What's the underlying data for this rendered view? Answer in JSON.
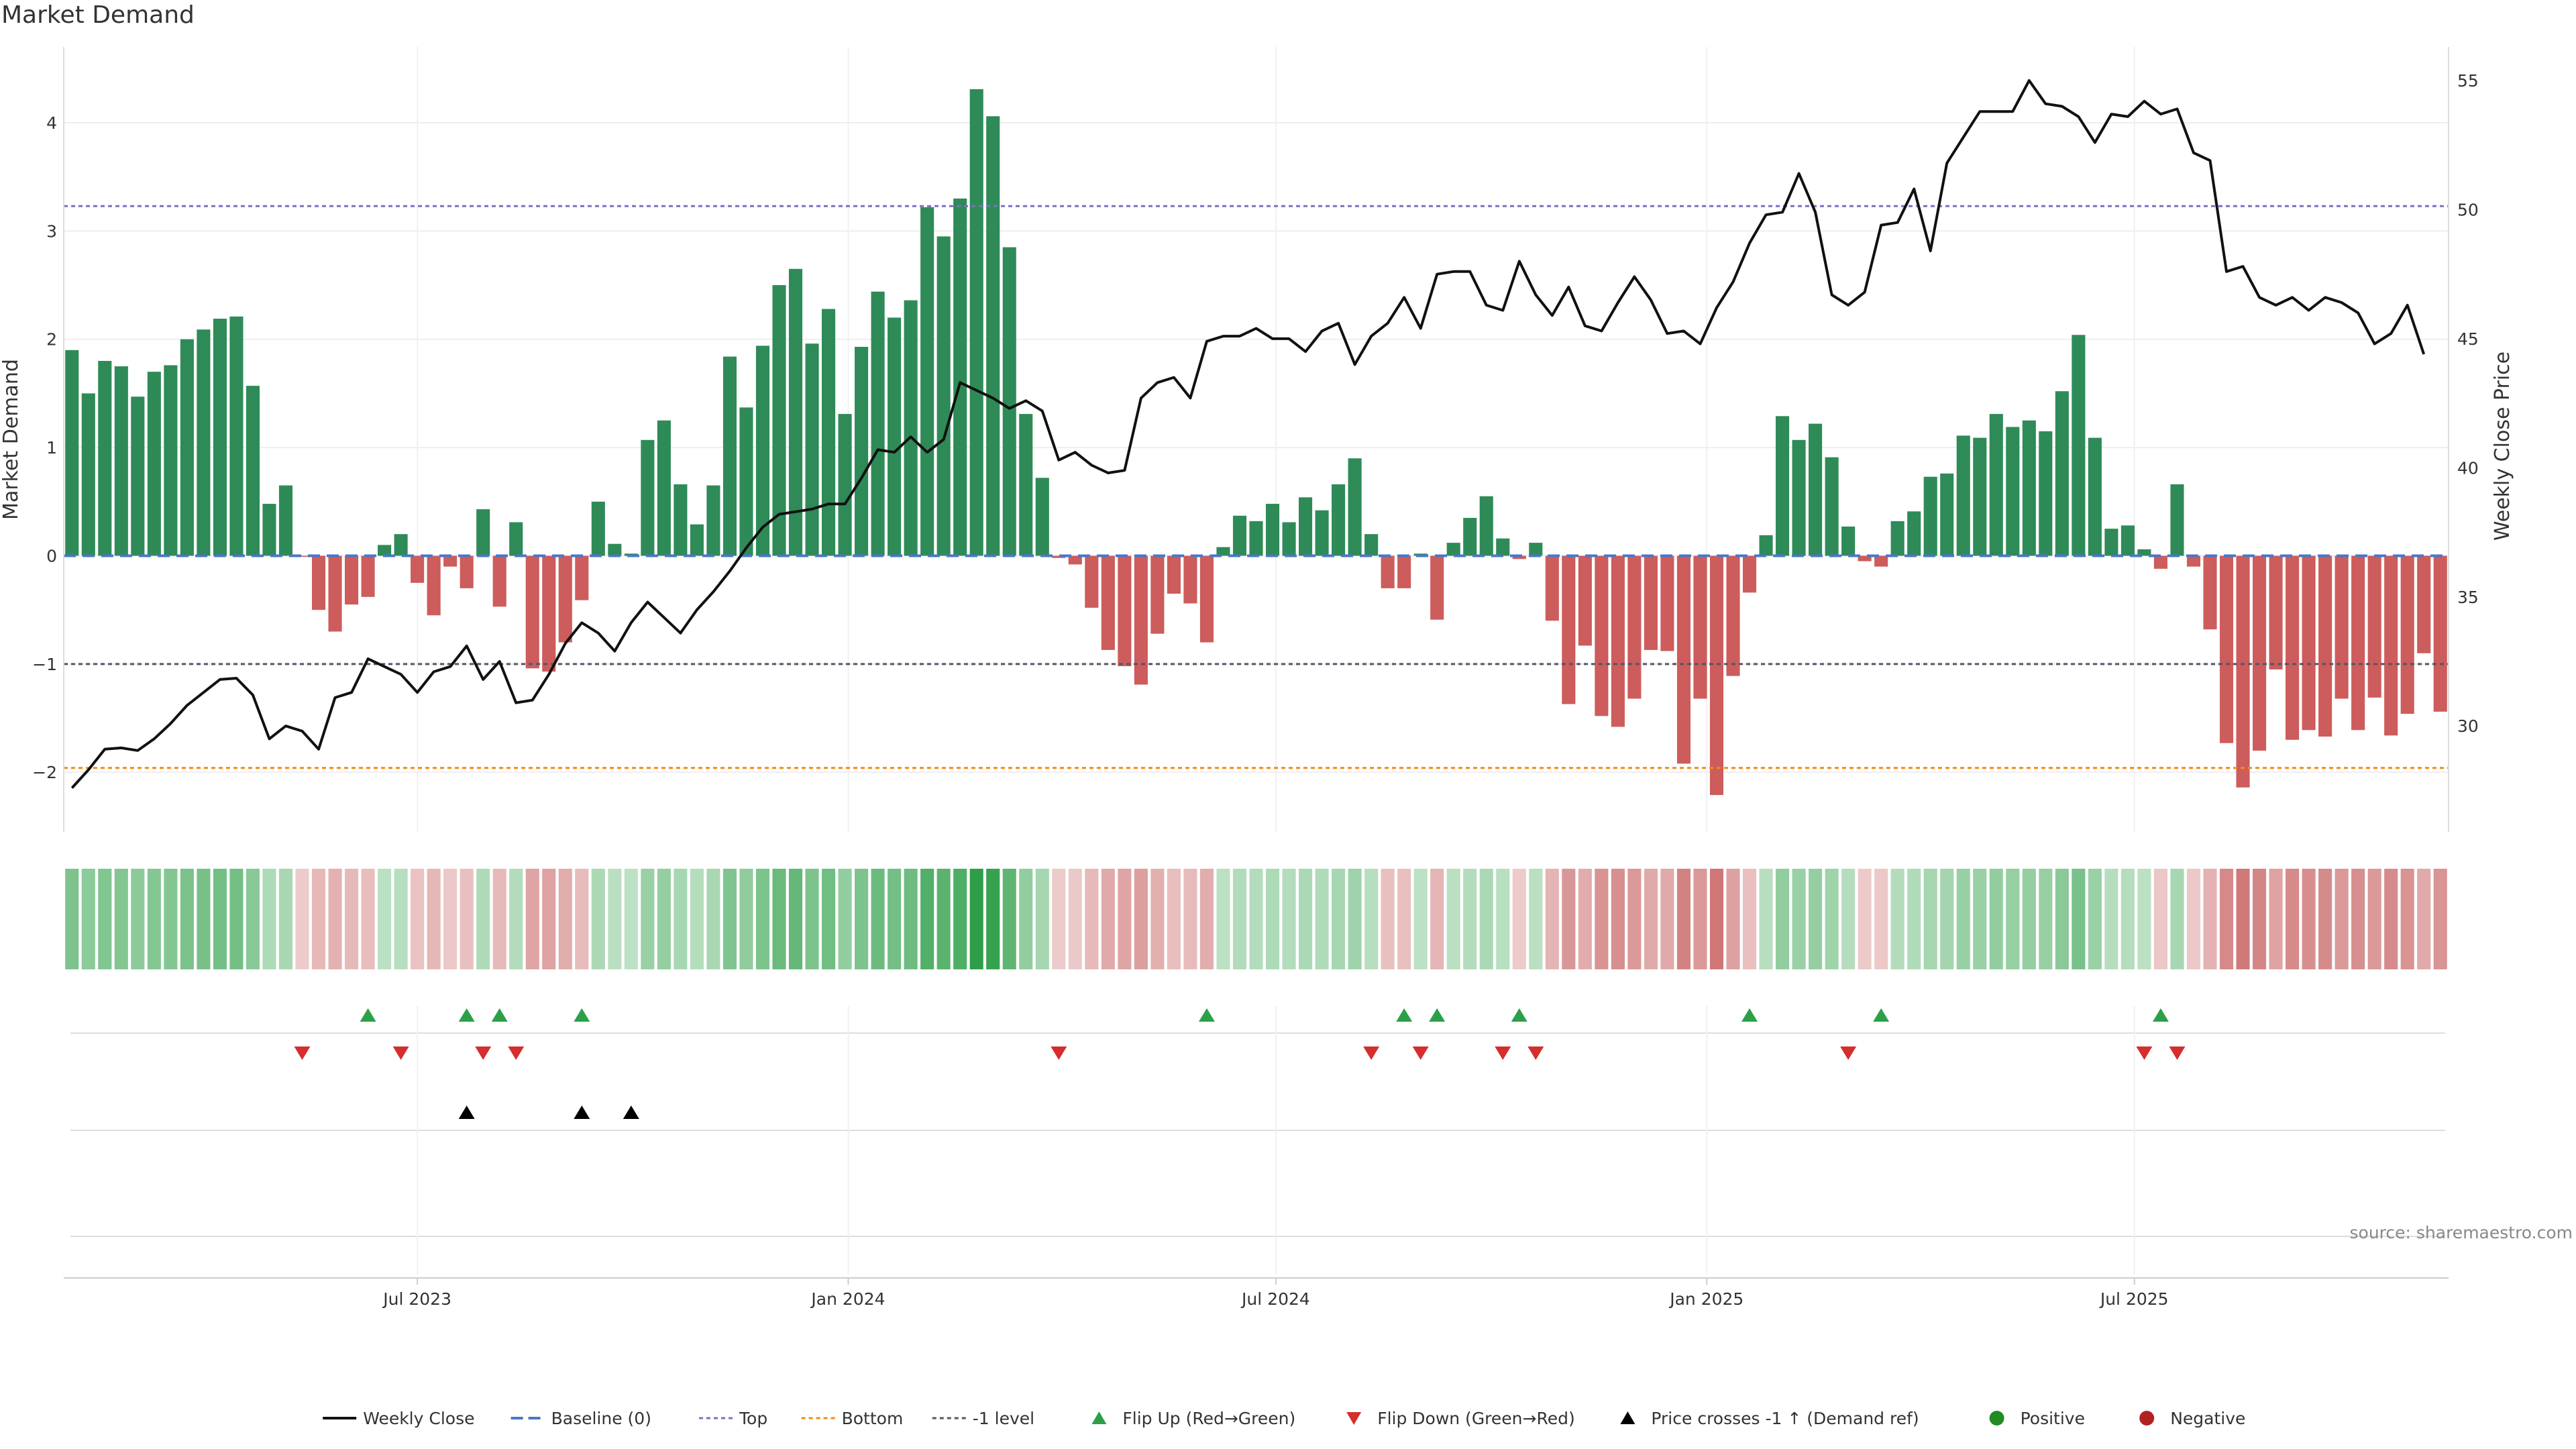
{
  "chart_data": {
    "type": "bar",
    "title": "Market Demand",
    "ylabel_left": "Market Demand",
    "ylabel_right": "Weekly Close Price",
    "ylim_left": [
      -2.55,
      4.7
    ],
    "ylim_right": [
      25.9,
      56.3
    ],
    "left_ticks": [
      {
        "v": 4,
        "label": "4"
      },
      {
        "v": 3,
        "label": "3"
      },
      {
        "v": 2,
        "label": "2"
      },
      {
        "v": 1,
        "label": "1"
      },
      {
        "v": 0,
        "label": "0"
      },
      {
        "v": -1,
        "label": "−1"
      },
      {
        "v": -2,
        "label": "−2"
      }
    ],
    "right_ticks": [
      {
        "v": 55,
        "label": "55"
      },
      {
        "v": 50,
        "label": "50"
      },
      {
        "v": 45,
        "label": "45"
      },
      {
        "v": 40,
        "label": "40"
      },
      {
        "v": 35,
        "label": "35"
      },
      {
        "v": 30,
        "label": "30"
      }
    ],
    "x_ticks": [
      {
        "i": 21.5,
        "label": "Jul 2023"
      },
      {
        "i": 47.7,
        "label": "Jan 2024"
      },
      {
        "i": 73.7,
        "label": "Jul 2024"
      },
      {
        "i": 99.9,
        "label": "Jan 2025"
      },
      {
        "i": 125.9,
        "label": "Jul 2025"
      }
    ],
    "reference_lines": {
      "top": 3.23,
      "bottom": -1.96,
      "minus_one": -1.0,
      "baseline": 0
    },
    "demand": [
      1.9,
      1.5,
      1.8,
      1.75,
      1.47,
      1.7,
      1.76,
      2.0,
      2.09,
      2.19,
      2.21,
      1.57,
      0.48,
      0.65,
      -0.01,
      -0.5,
      -0.7,
      -0.45,
      -0.38,
      0.1,
      0.2,
      -0.25,
      -0.55,
      -0.1,
      -0.3,
      0.43,
      -0.47,
      0.31,
      -1.04,
      -1.07,
      -0.8,
      -0.41,
      0.5,
      0.11,
      0.02,
      1.07,
      1.25,
      0.66,
      0.29,
      0.65,
      1.84,
      1.37,
      1.94,
      2.5,
      2.65,
      1.96,
      2.28,
      1.31,
      1.93,
      2.44,
      2.2,
      2.36,
      3.22,
      2.95,
      3.3,
      4.31,
      4.06,
      2.85,
      1.31,
      0.72,
      -0.02,
      -0.08,
      -0.48,
      -0.87,
      -1.02,
      -1.19,
      -0.72,
      -0.35,
      -0.44,
      -0.8,
      0.08,
      0.37,
      0.32,
      0.48,
      0.31,
      0.54,
      0.42,
      0.66,
      0.9,
      0.2,
      -0.3,
      -0.3,
      0.02,
      -0.59,
      0.12,
      0.35,
      0.55,
      0.16,
      -0.03,
      0.12,
      -0.6,
      -1.37,
      -0.83,
      -1.48,
      -1.58,
      -1.32,
      -0.87,
      -0.88,
      -1.92,
      -1.32,
      -2.21,
      -1.11,
      -0.34,
      0.19,
      1.29,
      1.07,
      1.22,
      0.91,
      0.27,
      -0.05,
      -0.1,
      0.32,
      0.41,
      0.73,
      0.76,
      1.11,
      1.09,
      1.31,
      1.19,
      1.25,
      1.15,
      1.52,
      2.04,
      1.09,
      0.25,
      0.28,
      0.06,
      -0.12,
      0.66,
      -0.1,
      -0.68,
      -1.73,
      -2.14,
      -1.8,
      -1.05,
      -1.7,
      -1.61,
      -1.67,
      -1.32,
      -1.61,
      -1.31,
      -1.66,
      -1.46,
      -0.9,
      -1.44
    ],
    "price": [
      27.6,
      28.3,
      29.1,
      29.15,
      29.05,
      29.5,
      30.1,
      30.8,
      31.3,
      31.8,
      31.85,
      31.2,
      29.5,
      30.0,
      29.8,
      29.1,
      31.1,
      31.3,
      32.6,
      32.3,
      32.0,
      31.3,
      32.1,
      32.3,
      33.1,
      31.8,
      32.5,
      30.9,
      31.0,
      32.0,
      33.2,
      34.0,
      33.6,
      32.9,
      34.0,
      34.8,
      34.2,
      33.6,
      34.5,
      35.2,
      36.0,
      36.9,
      37.7,
      38.2,
      38.3,
      38.4,
      38.6,
      38.6,
      39.6,
      40.7,
      40.6,
      41.2,
      40.6,
      41.1,
      43.3,
      43.0,
      42.7,
      42.3,
      42.6,
      42.2,
      40.3,
      40.6,
      40.1,
      39.8,
      39.9,
      42.7,
      43.3,
      43.5,
      42.7,
      44.9,
      45.1,
      45.1,
      45.4,
      45.0,
      45.0,
      44.5,
      45.3,
      45.6,
      44.0,
      45.1,
      45.6,
      46.6,
      45.4,
      47.5,
      47.6,
      47.6,
      46.3,
      46.1,
      48.0,
      46.7,
      45.9,
      47.0,
      45.5,
      45.3,
      46.4,
      47.4,
      46.5,
      45.2,
      45.3,
      44.8,
      46.2,
      47.2,
      48.7,
      49.8,
      49.9,
      51.4,
      49.9,
      46.7,
      46.3,
      46.8,
      49.4,
      49.5,
      50.8,
      48.4,
      51.8,
      52.8,
      53.8,
      53.8,
      53.8,
      55.0,
      54.1,
      54.0,
      53.6,
      52.6,
      53.7,
      53.6,
      54.2,
      53.7,
      53.9,
      52.2,
      51.9,
      47.6,
      47.8,
      46.6,
      46.3,
      46.6,
      46.1,
      46.6,
      46.4,
      46.0,
      44.8,
      45.2,
      46.3,
      44.4
    ],
    "flip_up": [
      18,
      24,
      26,
      31,
      69,
      81,
      83,
      88,
      102,
      110,
      127
    ],
    "flip_down": [
      14,
      20,
      25,
      27,
      60,
      79,
      82,
      87,
      89,
      108,
      126,
      128
    ],
    "price_cross": [
      24,
      31,
      34
    ],
    "colors": {
      "positive_bar": "#2e8b57",
      "negative_bar": "#cd5c5c",
      "price_line": "#111111",
      "baseline": "#4a77c4",
      "top": "#7b70c2",
      "bottom": "#f08c1a",
      "minus_one": "#555566",
      "flip_up": "#2ca048",
      "flip_down": "#d62d2d",
      "cross": "#000000",
      "legend_positive": "#228b22",
      "legend_negative": "#b22222"
    },
    "legend": [
      {
        "key": "price",
        "label": "Weekly Close"
      },
      {
        "key": "baseline",
        "label": "Baseline (0)"
      },
      {
        "key": "top",
        "label": "Top"
      },
      {
        "key": "bottom",
        "label": "Bottom"
      },
      {
        "key": "minus_one",
        "label": "-1 level"
      },
      {
        "key": "flip_up",
        "label": "Flip Up (Red→Green)"
      },
      {
        "key": "flip_down",
        "label": "Flip Down (Green→Red)"
      },
      {
        "key": "cross",
        "label": "Price crosses -1 ↑ (Demand ref)"
      },
      {
        "key": "positive",
        "label": "Positive"
      },
      {
        "key": "negative",
        "label": "Negative"
      }
    ],
    "source": "source: sharemaestro.com"
  }
}
